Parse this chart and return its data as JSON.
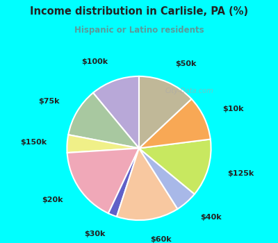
{
  "title": "Income distribution in Carlisle, PA (%)",
  "subtitle": "Hispanic or Latino residents",
  "bg_cyan": "#00ffff",
  "bg_chart": "#e8f5f0",
  "title_color": "#222222",
  "subtitle_color": "#5a9a9a",
  "labels": [
    "$100k",
    "$75k",
    "$150k",
    "$20k",
    "$30k",
    "$60k",
    "$40k",
    "$125k",
    "$10k",
    "$50k"
  ],
  "sizes": [
    11,
    11,
    4,
    17,
    2,
    14,
    5,
    13,
    10,
    13
  ],
  "colors": [
    "#b8a8d8",
    "#a8c8a0",
    "#f0f088",
    "#f0a8b8",
    "#6060c8",
    "#f8c8a0",
    "#a8b8e8",
    "#c8e860",
    "#f8a855",
    "#c0b898"
  ],
  "label_fontsize": 8,
  "label_color": "#222222",
  "wedge_edge_color": "#ffffff",
  "wedge_linewidth": 1.5,
  "startangle": 90,
  "label_distance": 1.28,
  "watermark": "City-Data.com",
  "watermark_color": "#aaaaaa"
}
